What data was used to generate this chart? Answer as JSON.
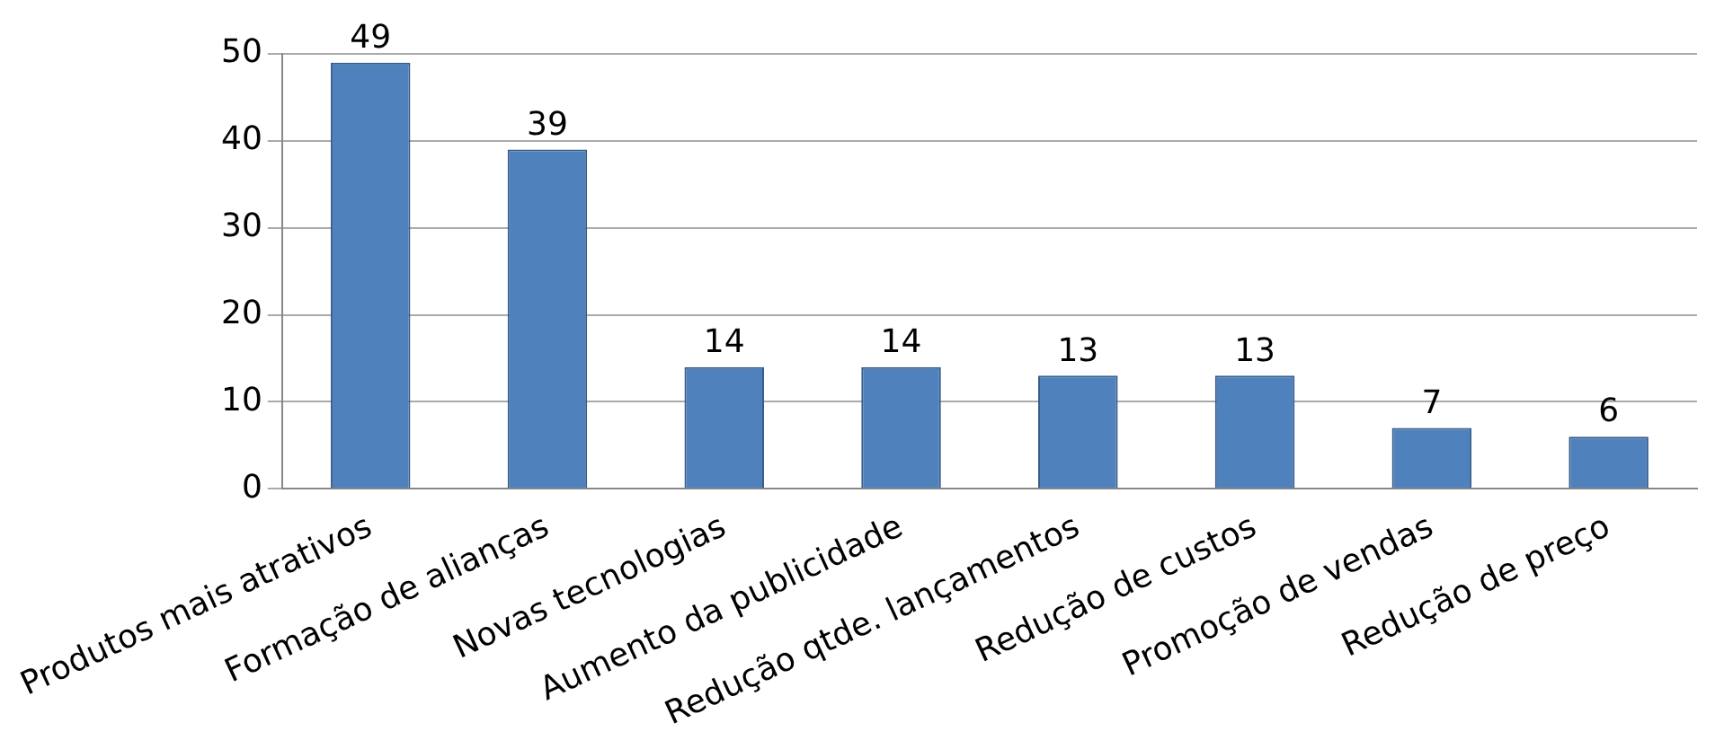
{
  "chart_data": {
    "type": "bar",
    "categories": [
      "Produtos mais atrativos",
      "Formação de alianças",
      "Novas tecnologias",
      "Aumento da publicidade",
      "Redução qtde. lançamentos",
      "Redução de custos",
      "Promoção de vendas",
      "Redução de preço"
    ],
    "values": [
      49,
      39,
      14,
      14,
      13,
      13,
      7,
      6
    ],
    "color": "#4f81bd",
    "ylim": [
      0,
      50
    ],
    "yticks": [
      0,
      10,
      20,
      30,
      40,
      50
    ],
    "grid": "y",
    "data_labels": true,
    "legend": false
  }
}
